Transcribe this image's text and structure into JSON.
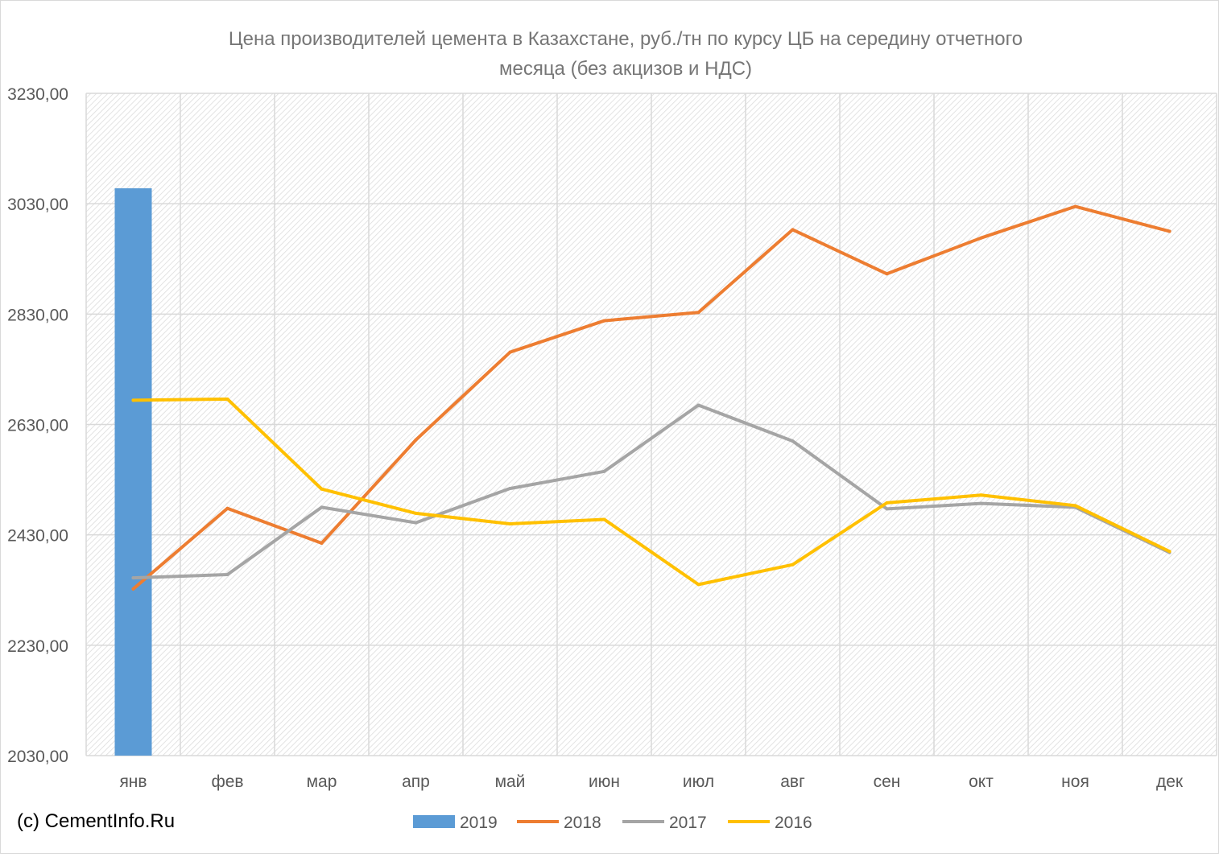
{
  "watermark": "(c) CementInfo.Ru",
  "chart_data": {
    "type": "line",
    "title": "Цена производителей цемента в Казахстане, руб./тн по курсу ЦБ на середину отчетного месяца (без акцизов и НДС)",
    "title_lines": [
      "Цена производителей цемента в Казахстане, руб./тн по курсу ЦБ на середину отчетного",
      "месяца (без акцизов и НДС)"
    ],
    "xlabel": "",
    "ylabel": "",
    "categories": [
      "янв",
      "фев",
      "мар",
      "апр",
      "май",
      "июн",
      "июл",
      "авг",
      "сен",
      "окт",
      "ноя",
      "дек"
    ],
    "ylim": [
      2030,
      3230
    ],
    "yticks": [
      2030,
      2230,
      2430,
      2630,
      2830,
      3030,
      3230
    ],
    "ytick_labels": [
      "2030,00",
      "2230,00",
      "2430,00",
      "2630,00",
      "2830,00",
      "3030,00",
      "3230,00"
    ],
    "grid": true,
    "legend_position": "bottom",
    "series": [
      {
        "name": "2019",
        "kind": "bar",
        "color": "#5b9bd5",
        "values": [
          3058,
          null,
          null,
          null,
          null,
          null,
          null,
          null,
          null,
          null,
          null,
          null
        ]
      },
      {
        "name": "2018",
        "kind": "line",
        "color": "#ed7d31",
        "values": [
          2332,
          2478,
          2415,
          2602,
          2761,
          2818,
          2833,
          2983,
          2903,
          2968,
          3025,
          2980
        ]
      },
      {
        "name": "2017",
        "kind": "line",
        "color": "#a5a5a5",
        "values": [
          2352,
          2358,
          2480,
          2452,
          2514,
          2545,
          2665,
          2600,
          2477,
          2487,
          2480,
          2398
        ]
      },
      {
        "name": "2016",
        "kind": "line",
        "color": "#ffc000",
        "values": [
          2674,
          2676,
          2513,
          2469,
          2450,
          2458,
          2340,
          2376,
          2488,
          2502,
          2483,
          2400
        ]
      }
    ]
  }
}
